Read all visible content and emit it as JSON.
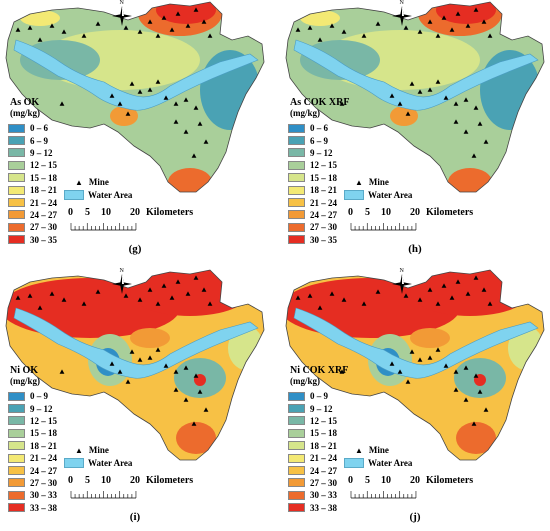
{
  "panels": [
    {
      "id": "g",
      "title": "As OK",
      "units": "(mg/kg)",
      "caption": "(g)",
      "scheme": "as",
      "legend": [
        {
          "label": "0 – 6",
          "color": "#2f8fc6"
        },
        {
          "label": "6 – 9",
          "color": "#4aa2b4"
        },
        {
          "label": "9 – 12",
          "color": "#79b7a6"
        },
        {
          "label": "12 – 15",
          "color": "#a9cf9a"
        },
        {
          "label": "15 – 18",
          "color": "#d6e58b"
        },
        {
          "label": "18 – 21",
          "color": "#f3e974"
        },
        {
          "label": "21 – 24",
          "color": "#f7c145"
        },
        {
          "label": "24 – 27",
          "color": "#f29a36"
        },
        {
          "label": "27 – 30",
          "color": "#ec6b2d"
        },
        {
          "label": "30 – 35",
          "color": "#e52d22"
        }
      ]
    },
    {
      "id": "h",
      "title": "As COK XRF",
      "units": "(mg/kg)",
      "caption": "(h)",
      "scheme": "as",
      "legend": [
        {
          "label": "0 – 6",
          "color": "#2f8fc6"
        },
        {
          "label": "6 – 9",
          "color": "#4aa2b4"
        },
        {
          "label": "9 – 12",
          "color": "#79b7a6"
        },
        {
          "label": "12 – 15",
          "color": "#a9cf9a"
        },
        {
          "label": "15 – 18",
          "color": "#d6e58b"
        },
        {
          "label": "18 – 21",
          "color": "#f3e974"
        },
        {
          "label": "21 – 24",
          "color": "#f7c145"
        },
        {
          "label": "24 – 27",
          "color": "#f29a36"
        },
        {
          "label": "27 – 30",
          "color": "#ec6b2d"
        },
        {
          "label": "30 – 35",
          "color": "#e52d22"
        }
      ]
    },
    {
      "id": "i",
      "title": "Ni OK",
      "units": "(mg/kg)",
      "caption": "(i)",
      "scheme": "ni",
      "legend": [
        {
          "label": "0 – 9",
          "color": "#2f8fc6"
        },
        {
          "label": "9 – 12",
          "color": "#4aa2b4"
        },
        {
          "label": "12 – 15",
          "color": "#79b7a6"
        },
        {
          "label": "15 – 18",
          "color": "#a9cf9a"
        },
        {
          "label": "18 – 21",
          "color": "#d6e58b"
        },
        {
          "label": "21 – 24",
          "color": "#f3e974"
        },
        {
          "label": "24 – 27",
          "color": "#f7c145"
        },
        {
          "label": "27 – 30",
          "color": "#f29a36"
        },
        {
          "label": "30 – 33",
          "color": "#ec6b2d"
        },
        {
          "label": "33 – 38",
          "color": "#e52d22"
        }
      ]
    },
    {
      "id": "j",
      "title": "Ni COK XRF",
      "units": "(mg/kg)",
      "caption": "(j)",
      "scheme": "ni",
      "legend": [
        {
          "label": "0 – 9",
          "color": "#2f8fc6"
        },
        {
          "label": "9 – 12",
          "color": "#4aa2b4"
        },
        {
          "label": "12 – 15",
          "color": "#79b7a6"
        },
        {
          "label": "15 – 18",
          "color": "#a9cf9a"
        },
        {
          "label": "18 – 21",
          "color": "#d6e58b"
        },
        {
          "label": "21 – 24",
          "color": "#f3e974"
        },
        {
          "label": "24 – 27",
          "color": "#f7c145"
        },
        {
          "label": "27 – 30",
          "color": "#f29a36"
        },
        {
          "label": "30 – 33",
          "color": "#ec6b2d"
        },
        {
          "label": "33 – 38",
          "color": "#e52d22"
        }
      ]
    }
  ],
  "keys": {
    "mine_label": "Mine",
    "water_label": "Water Area",
    "water_color": "#7fd3ef"
  },
  "scale": {
    "ticks": [
      "0",
      "5",
      "10",
      "20"
    ],
    "unit": "Kilometers"
  },
  "north_label": "N",
  "icons": {
    "mine": "triangle-icon",
    "north_arrow": "north-arrow-icon"
  }
}
